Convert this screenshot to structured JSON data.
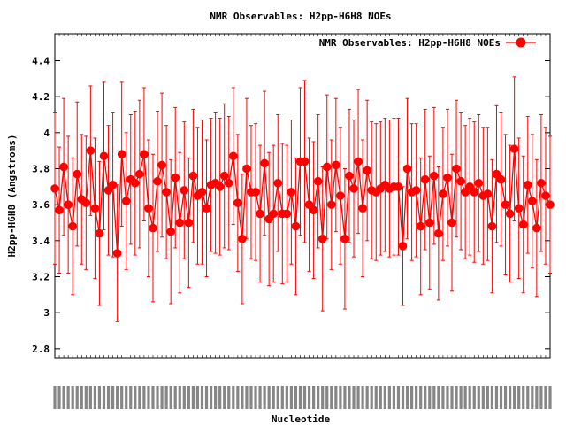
{
  "chart_data": {
    "type": "line",
    "title": "NMR Observables: H2pp-H6H8 NOEs",
    "xlabel": "Nucleotide",
    "ylabel": "H2pp-H6H8 (Angstroms)",
    "ylim": [
      2.75,
      4.55
    ],
    "yticks": [
      "2.8",
      "3",
      "3.2",
      "3.4",
      "3.6",
      "3.8",
      "4",
      "4.2",
      "4.4"
    ],
    "grid": false,
    "legend": "top-right",
    "series": [
      {
        "name": "NMR Observables: H2pp-H6H8 NOEs",
        "color": "#ff0000",
        "values": [
          3.69,
          3.57,
          3.81,
          3.6,
          3.48,
          3.77,
          3.63,
          3.61,
          3.9,
          3.58,
          3.44,
          3.87,
          3.68,
          3.71,
          3.33,
          3.88,
          3.62,
          3.74,
          3.72,
          3.77,
          3.88,
          3.58,
          3.47,
          3.73,
          3.82,
          3.67,
          3.45,
          3.75,
          3.5,
          3.68,
          3.5,
          3.76,
          3.65,
          3.67,
          3.58,
          3.71,
          3.72,
          3.7,
          3.76,
          3.72,
          3.87,
          3.61,
          3.41,
          3.8,
          3.67,
          3.67,
          3.55,
          3.83,
          3.52,
          3.55,
          3.72,
          3.55,
          3.55,
          3.67,
          3.48,
          3.84,
          3.84,
          3.6,
          3.57,
          3.73,
          3.41,
          3.81,
          3.6,
          3.82,
          3.65,
          3.41,
          3.76,
          3.69,
          3.84,
          3.58,
          3.79,
          3.68,
          3.67,
          3.69,
          3.71,
          3.69,
          3.7,
          3.7,
          3.37,
          3.8,
          3.67,
          3.68,
          3.48,
          3.74,
          3.5,
          3.76,
          3.44,
          3.66,
          3.75,
          3.5,
          3.8,
          3.73,
          3.67,
          3.7,
          3.67,
          3.72,
          3.65,
          3.66,
          3.48,
          3.77,
          3.74,
          3.6,
          3.55,
          3.91,
          3.58,
          3.49,
          3.71,
          3.62,
          3.47,
          3.72,
          3.65,
          3.6
        ],
        "error": [
          0.42,
          0.35,
          0.38,
          0.38,
          0.38,
          0.4,
          0.36,
          0.37,
          0.36,
          0.39,
          0.4,
          0.41,
          0.36,
          0.4,
          0.38,
          0.4,
          0.38,
          0.36,
          0.4,
          0.41,
          0.37,
          0.38,
          0.41,
          0.39,
          0.4,
          0.37,
          0.4,
          0.39,
          0.39,
          0.38,
          0.36,
          0.37,
          0.38,
          0.4,
          0.38,
          0.37,
          0.39,
          0.38,
          0.4,
          0.37,
          0.38,
          0.38,
          0.36,
          0.39,
          0.37,
          0.38,
          0.38,
          0.4,
          0.37,
          0.38,
          0.38,
          0.39,
          0.38,
          0.4,
          0.38,
          0.41,
          0.45,
          0.37,
          0.38,
          0.37,
          0.4,
          0.4,
          0.36,
          0.37,
          0.38,
          0.39,
          0.37,
          0.38,
          0.4,
          0.38,
          0.39,
          0.38,
          0.38,
          0.37,
          0.37,
          0.38,
          0.38,
          0.38,
          0.33,
          0.39,
          0.38,
          0.37,
          0.38,
          0.39,
          0.37,
          0.38,
          0.37,
          0.37,
          0.38,
          0.38,
          0.38,
          0.38,
          0.37,
          0.38,
          0.39,
          0.38,
          0.38,
          0.37,
          0.37,
          0.38,
          0.37,
          0.39,
          0.38,
          0.4,
          0.39,
          0.38,
          0.38,
          0.37,
          0.38,
          0.38,
          0.38,
          0.38
        ]
      }
    ]
  }
}
